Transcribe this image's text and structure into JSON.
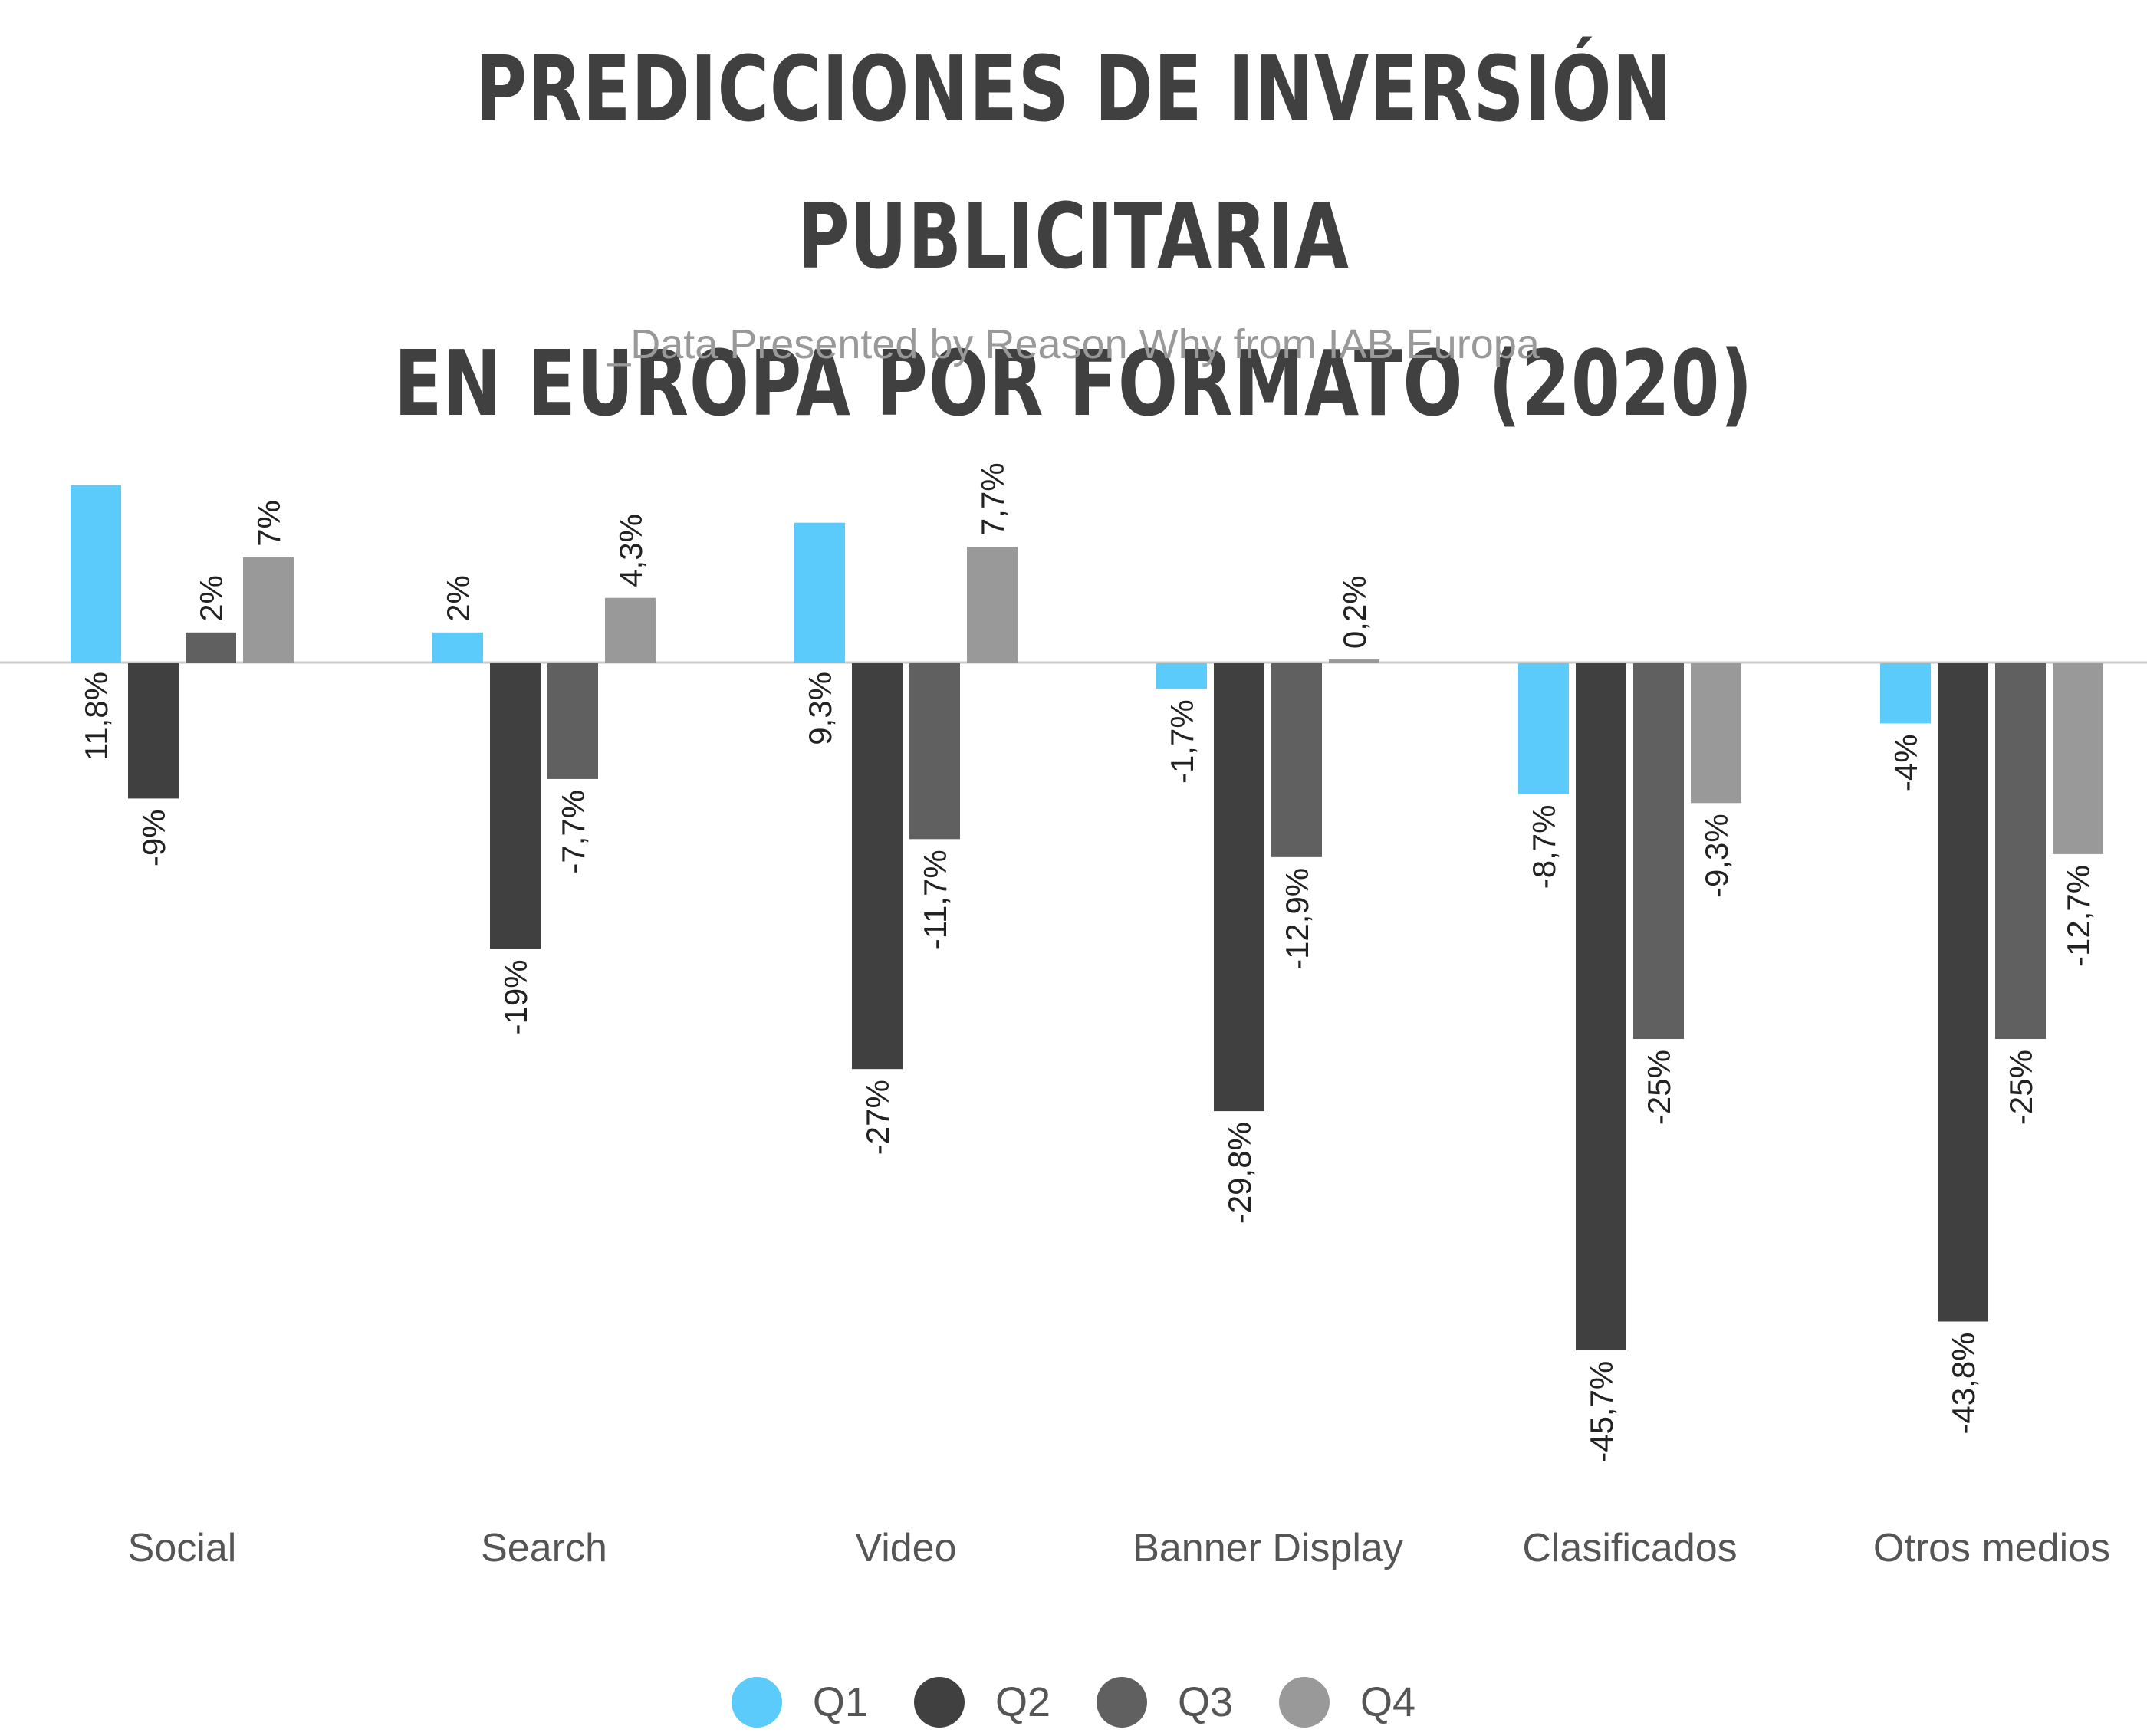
{
  "header": {
    "title_line1": "PREDICCIONES DE INVERSIÓN PUBLICITARIA",
    "title_line2": "EN EUROPA POR FORMATO (2020)",
    "subtitle": "_Data Presented by Reason Why from IAB Europa"
  },
  "colors": {
    "Q1": "#5bcbfb",
    "Q2": "#404040",
    "Q3": "#606060",
    "Q4": "#999999",
    "baseline": "#cccccc"
  },
  "chart_data": {
    "type": "bar",
    "categories": [
      "Social",
      "Search",
      "Video",
      "Banner Display",
      "Clasificados",
      "Otros medios"
    ],
    "series": [
      {
        "name": "Q1",
        "values": [
          11.8,
          2,
          9.3,
          -1.7,
          -8.7,
          -4
        ],
        "labels": [
          "11,8%",
          "2%",
          "9,3%",
          "-1,7%",
          "-8,7%",
          "-4%"
        ]
      },
      {
        "name": "Q2",
        "values": [
          -9,
          -19,
          -27,
          -29.8,
          -45.7,
          -43.8
        ],
        "labels": [
          "-9%",
          "-19%",
          "-27%",
          "-29,8%",
          "-45,7%",
          "-43,8%"
        ]
      },
      {
        "name": "Q3",
        "values": [
          2,
          -7.7,
          -11.7,
          -12.9,
          -25,
          -25
        ],
        "labels": [
          "2%",
          "-7,7%",
          "-11,7%",
          "-12,9%",
          "-25%",
          "-25%"
        ]
      },
      {
        "name": "Q4",
        "values": [
          7,
          4.3,
          7.7,
          0.2,
          -9.3,
          -12.7
        ],
        "labels": [
          "7%",
          "4,3%",
          "7,7%",
          "0,2%",
          "-9,3%",
          "-12,7%"
        ]
      }
    ],
    "legend_position": "bottom-center",
    "grid": false
  }
}
